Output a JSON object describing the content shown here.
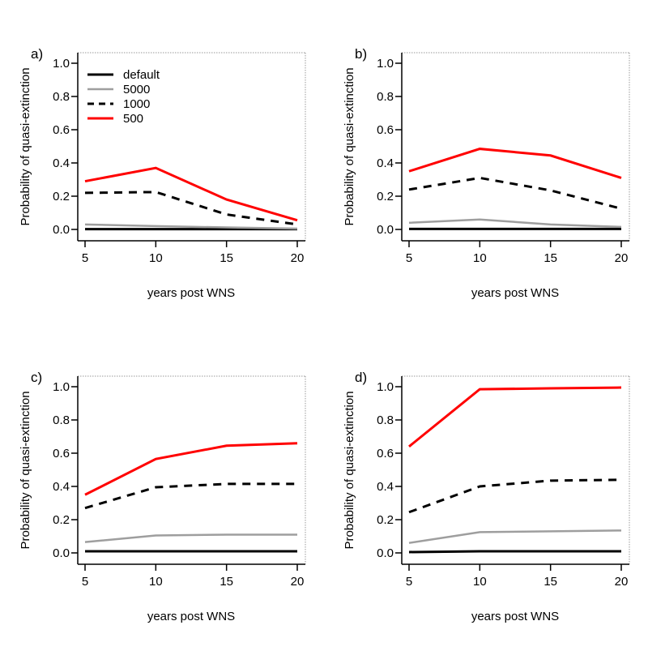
{
  "figure": {
    "background": "#ffffff",
    "panels": 4,
    "layout": "2x2"
  },
  "series_styles": [
    {
      "name": "default",
      "color": "#000000",
      "style": "solid",
      "line_width": 3
    },
    {
      "name": "5000",
      "color": "#9e9e9e",
      "style": "solid",
      "line_width": 2.5
    },
    {
      "name": "1000",
      "color": "#000000",
      "style": "dashed",
      "line_width": 3
    },
    {
      "name": "500",
      "color": "#ff0000",
      "style": "solid",
      "line_width": 3
    }
  ],
  "legend": {
    "entries": [
      "default",
      "5000",
      "1000",
      "500"
    ],
    "position": "top-left",
    "shown_in_panel": "a)"
  },
  "chart_data": [
    {
      "type": "line",
      "panel_label": "a)",
      "x": [
        5,
        10,
        15,
        20
      ],
      "xlabel": "years post WNS",
      "ylabel": "Probability of quasi-extinction",
      "xlim": [
        5,
        20
      ],
      "ylim": [
        0,
        1
      ],
      "xtick_labels": [
        "5",
        "10",
        "15",
        "20"
      ],
      "ytick_labels": [
        "0.0",
        "0.2",
        "0.4",
        "0.6",
        "0.8",
        "1.0"
      ],
      "grid": false,
      "legend_visible": true,
      "series": [
        {
          "name": "default",
          "values": [
            0.002,
            0.002,
            0.002,
            0.002
          ]
        },
        {
          "name": "5000",
          "values": [
            0.03,
            0.02,
            0.012,
            0.005
          ]
        },
        {
          "name": "1000",
          "values": [
            0.22,
            0.225,
            0.09,
            0.03
          ]
        },
        {
          "name": "500",
          "values": [
            0.29,
            0.37,
            0.18,
            0.055
          ]
        }
      ]
    },
    {
      "type": "line",
      "panel_label": "b)",
      "x": [
        5,
        10,
        15,
        20
      ],
      "xlabel": "years post WNS",
      "ylabel": "Probability of quasi-extinction",
      "xlim": [
        5,
        20
      ],
      "ylim": [
        0,
        1
      ],
      "xtick_labels": [
        "5",
        "10",
        "15",
        "20"
      ],
      "ytick_labels": [
        "0.0",
        "0.2",
        "0.4",
        "0.6",
        "0.8",
        "1.0"
      ],
      "grid": false,
      "legend_visible": false,
      "series": [
        {
          "name": "default",
          "values": [
            0.003,
            0.003,
            0.003,
            0.003
          ]
        },
        {
          "name": "5000",
          "values": [
            0.04,
            0.06,
            0.03,
            0.015
          ]
        },
        {
          "name": "1000",
          "values": [
            0.24,
            0.31,
            0.235,
            0.125
          ]
        },
        {
          "name": "500",
          "values": [
            0.35,
            0.485,
            0.445,
            0.31
          ]
        }
      ]
    },
    {
      "type": "line",
      "panel_label": "c)",
      "x": [
        5,
        10,
        15,
        20
      ],
      "xlabel": "years post WNS",
      "ylabel": "Probability of quasi-extinction",
      "xlim": [
        5,
        20
      ],
      "ylim": [
        0,
        1
      ],
      "xtick_labels": [
        "5",
        "10",
        "15",
        "20"
      ],
      "ytick_labels": [
        "0.0",
        "0.2",
        "0.4",
        "0.6",
        "0.8",
        "1.0"
      ],
      "grid": false,
      "legend_visible": false,
      "series": [
        {
          "name": "default",
          "values": [
            0.01,
            0.01,
            0.01,
            0.01
          ]
        },
        {
          "name": "5000",
          "values": [
            0.065,
            0.105,
            0.11,
            0.11
          ]
        },
        {
          "name": "1000",
          "values": [
            0.27,
            0.395,
            0.415,
            0.415
          ]
        },
        {
          "name": "500",
          "values": [
            0.35,
            0.565,
            0.645,
            0.66
          ]
        }
      ]
    },
    {
      "type": "line",
      "panel_label": "d)",
      "x": [
        5,
        10,
        15,
        20
      ],
      "xlabel": "years post WNS",
      "ylabel": "Probability of quasi-extinction",
      "xlim": [
        5,
        20
      ],
      "ylim": [
        0,
        1
      ],
      "xtick_labels": [
        "5",
        "10",
        "15",
        "20"
      ],
      "ytick_labels": [
        "0.0",
        "0.2",
        "0.4",
        "0.6",
        "0.8",
        "1.0"
      ],
      "grid": false,
      "legend_visible": false,
      "series": [
        {
          "name": "default",
          "values": [
            0.005,
            0.01,
            0.01,
            0.01
          ]
        },
        {
          "name": "5000",
          "values": [
            0.06,
            0.125,
            0.13,
            0.135
          ]
        },
        {
          "name": "1000",
          "values": [
            0.245,
            0.4,
            0.435,
            0.44
          ]
        },
        {
          "name": "500",
          "values": [
            0.64,
            0.985,
            0.99,
            0.995
          ]
        }
      ]
    }
  ]
}
